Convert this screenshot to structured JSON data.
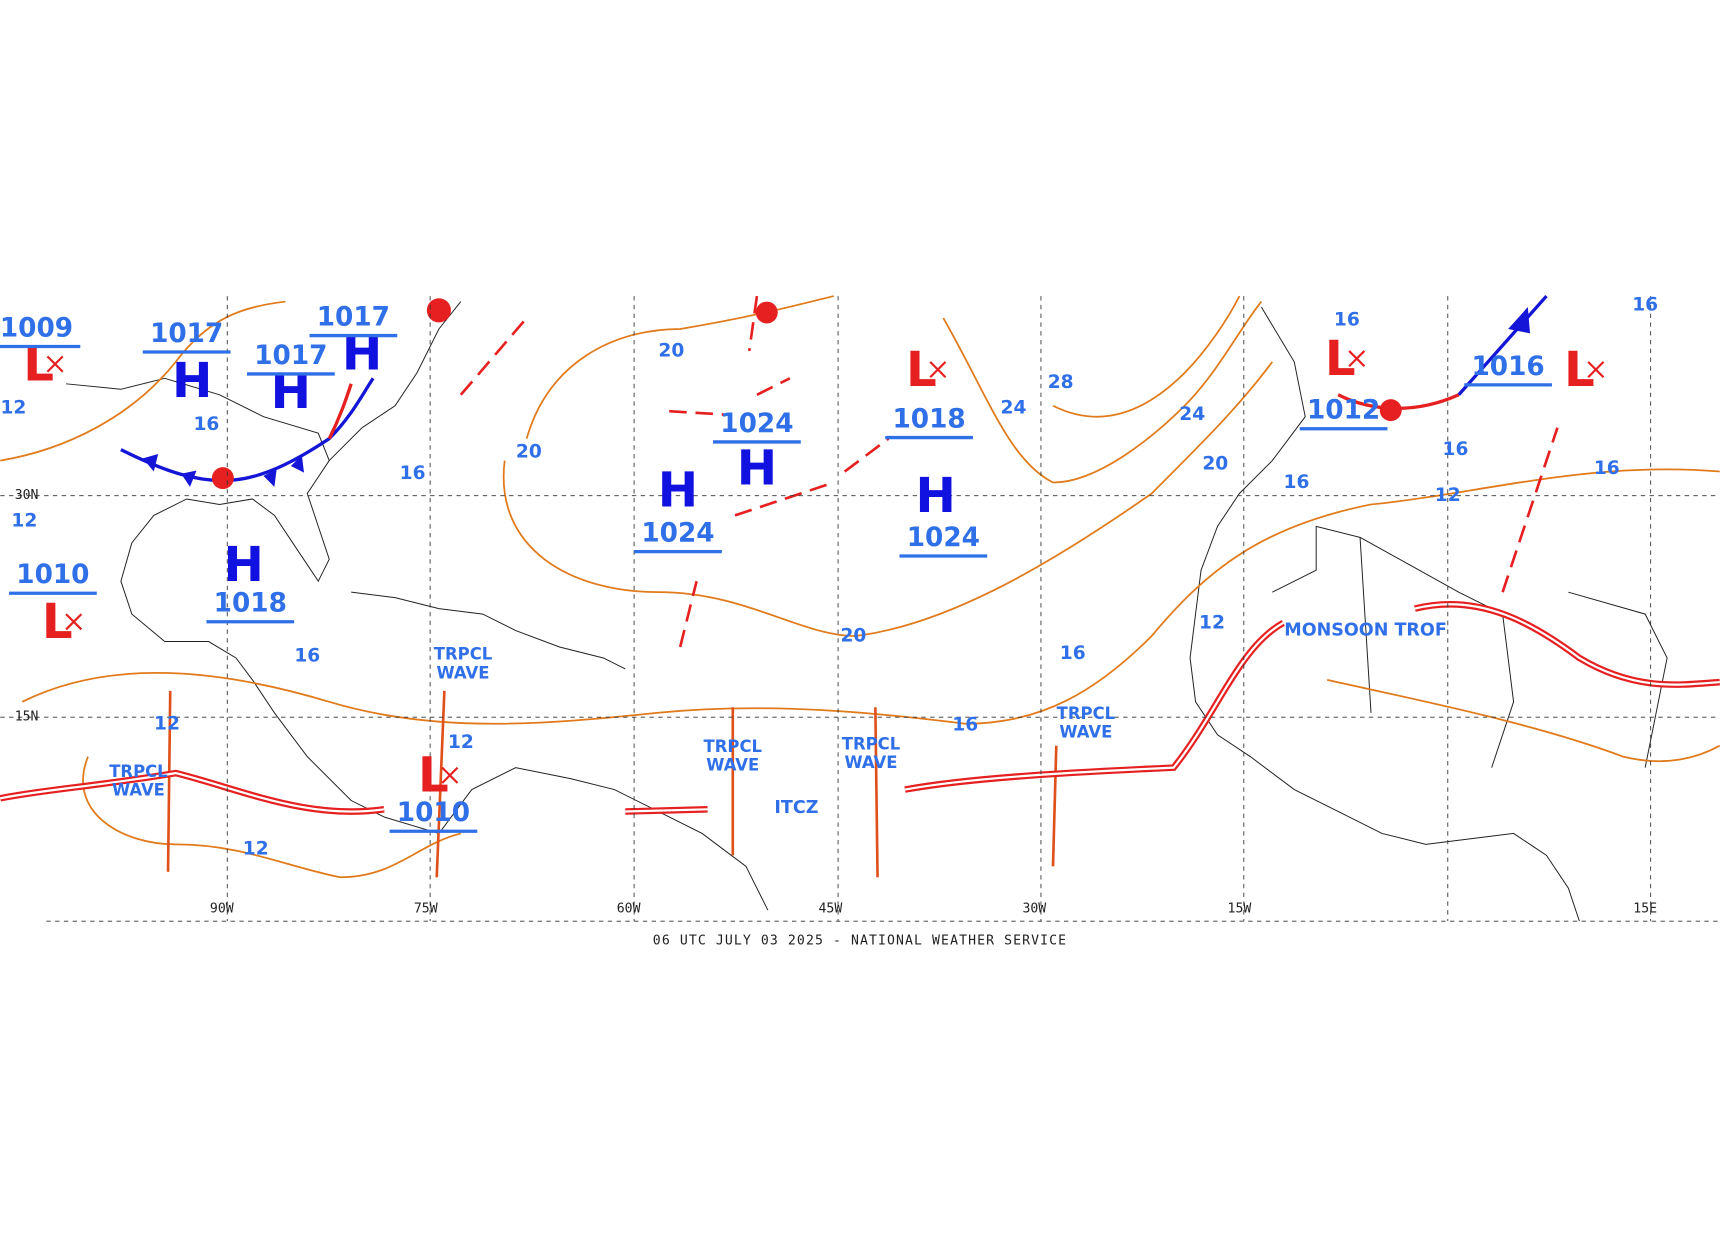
{
  "centers": [
    {
      "symbol": "L",
      "pressure": "1009"
    },
    {
      "symbol": "H",
      "pressure": "1017"
    },
    {
      "symbol": "H",
      "pressure": "1017"
    },
    {
      "symbol": "H",
      "pressure": "1017"
    },
    {
      "symbol": "L",
      "pressure": "1010"
    },
    {
      "symbol": "H",
      "pressure": "1018"
    },
    {
      "symbol": "L",
      "pressure": "1010"
    },
    {
      "symbol": "H",
      "pressure": "1024"
    },
    {
      "symbol": "H",
      "pressure": "1024"
    },
    {
      "symbol": "L",
      "pressure": "1018"
    },
    {
      "symbol": "H",
      "pressure": "1024"
    },
    {
      "symbol": "L",
      "pressure": "1012"
    },
    {
      "symbol": "L",
      "pressure": "1016"
    }
  ],
  "isobar_labels": [
    "12",
    "12",
    "12",
    "12",
    "12",
    "12",
    "12",
    "16",
    "16",
    "16",
    "16",
    "16",
    "16",
    "16",
    "16",
    "16",
    "16",
    "20",
    "20",
    "20",
    "20",
    "24",
    "24",
    "28"
  ],
  "features": [
    "TRPCL WAVE",
    "TRPCL WAVE",
    "TRPCL WAVE",
    "TRPCL WAVE",
    "TRPCL WAVE",
    "ITCZ",
    "MONSOON TROF"
  ],
  "longitudes": [
    "90W",
    "75W",
    "60W",
    "45W",
    "30W",
    "15W",
    "15E"
  ],
  "latitudes": [
    "30N",
    "15N"
  ],
  "footer": "06 UTC JULY 03 2025 - NATIONAL WEATHER SERVICE"
}
